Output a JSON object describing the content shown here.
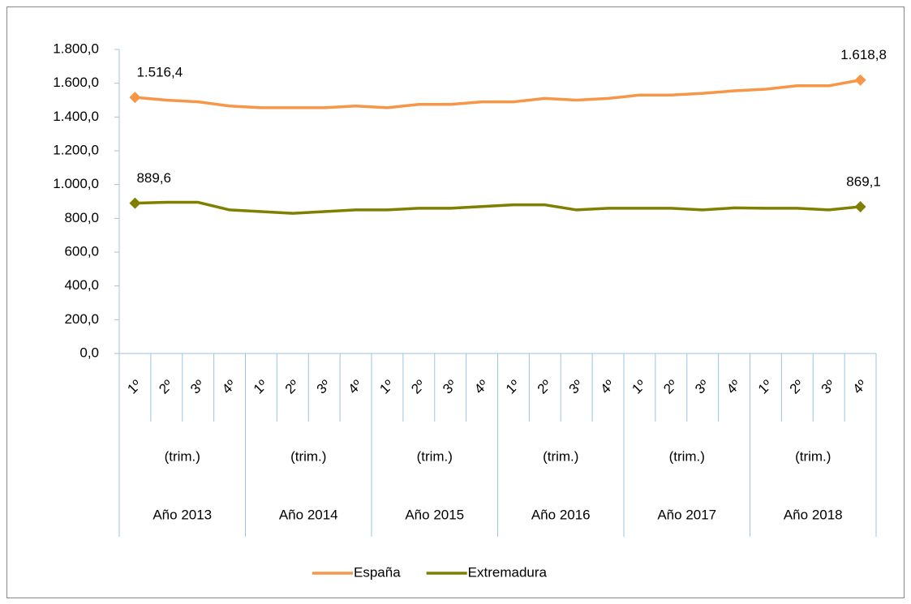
{
  "chart_data": {
    "type": "line",
    "categories": [
      "1º",
      "2º",
      "3º",
      "4º",
      "1º",
      "2º",
      "3º",
      "4º",
      "1º",
      "2º",
      "3º",
      "4º",
      "1º",
      "2º",
      "3º",
      "4º",
      "1º",
      "2º",
      "3º",
      "4º",
      "1º",
      "2º",
      "3º",
      "4º"
    ],
    "category_groups": [
      {
        "unit": "(trim.)",
        "label": "Año 2013"
      },
      {
        "unit": "(trim.)",
        "label": "Año 2014"
      },
      {
        "unit": "(trim.)",
        "label": "Año 2015"
      },
      {
        "unit": "(trim.)",
        "label": "Año 2016"
      },
      {
        "unit": "(trim.)",
        "label": "Año 2017"
      },
      {
        "unit": "(trim.)",
        "label": "Año 2018"
      }
    ],
    "series": [
      {
        "name": "España",
        "color": "#f79646",
        "values": [
          1516.4,
          1500,
          1490,
          1465,
          1455,
          1455,
          1455,
          1465,
          1455,
          1475,
          1475,
          1490,
          1490,
          1510,
          1500,
          1510,
          1530,
          1530,
          1540,
          1555,
          1565,
          1585,
          1585,
          1618.8
        ],
        "value_labels": [
          "1.516,4",
          null,
          null,
          null,
          null,
          null,
          null,
          null,
          null,
          null,
          null,
          null,
          null,
          null,
          null,
          null,
          null,
          null,
          null,
          null,
          null,
          null,
          null,
          "1.618,8"
        ]
      },
      {
        "name": "Extremadura",
        "color": "#7f7f00",
        "values": [
          889.6,
          895,
          895,
          850,
          840,
          830,
          840,
          850,
          850,
          860,
          860,
          870,
          880,
          880,
          850,
          860,
          860,
          860,
          850,
          862,
          860,
          860,
          850,
          869.1
        ],
        "value_labels": [
          "889,6",
          null,
          null,
          null,
          null,
          null,
          null,
          null,
          null,
          null,
          null,
          null,
          null,
          null,
          null,
          null,
          null,
          null,
          null,
          null,
          null,
          null,
          null,
          "869,1"
        ]
      }
    ],
    "ylim": [
      0,
      1800
    ],
    "yticks": [
      {
        "value": 0,
        "label": "0,0"
      },
      {
        "value": 200,
        "label": "200,0"
      },
      {
        "value": 400,
        "label": "400,0"
      },
      {
        "value": 600,
        "label": "600,0"
      },
      {
        "value": 800,
        "label": "800,0"
      },
      {
        "value": 1000,
        "label": "1.000,0"
      },
      {
        "value": 1200,
        "label": "1.200,0"
      },
      {
        "value": 1400,
        "label": "1.400,0"
      },
      {
        "value": 1600,
        "label": "1.600,0"
      },
      {
        "value": 1800,
        "label": "1.800,0"
      }
    ],
    "legend": "bottom"
  }
}
